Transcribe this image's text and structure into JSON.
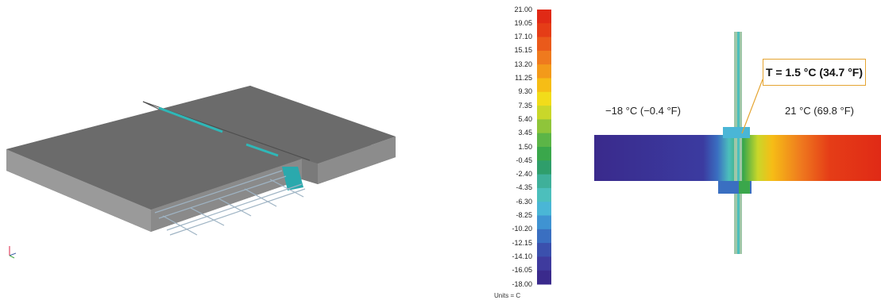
{
  "legend": {
    "ticks": [
      "21.00",
      "19.05",
      "17.10",
      "15.15",
      "13.20",
      "11.25",
      "9.30",
      "7.35",
      "5.40",
      "3.45",
      "1.50",
      "-0.45",
      "-2.40",
      "-4.35",
      "-6.30",
      "-8.25",
      "-10.20",
      "-12.15",
      "-14.10",
      "-16.05",
      "-18.00"
    ],
    "colors": [
      "#e02a16",
      "#e53d17",
      "#ea5a1b",
      "#ef7a1e",
      "#f39a1a",
      "#f6bd16",
      "#f2dc1a",
      "#c9d72a",
      "#8fc53a",
      "#5cb547",
      "#3aa74b",
      "#2f9e6b",
      "#3fb09a",
      "#4cbfbc",
      "#4ab6d6",
      "#3f93d2",
      "#3a6fc1",
      "#3b50ad",
      "#3f3b9e",
      "#3a2a8c"
    ],
    "units": "Units = C"
  },
  "thermal": {
    "cold_label": "−18 °C (−0.4 °F)",
    "warm_label": "21 °C (69.8 °F)",
    "callout": "T = 1.5 °C (34.7 °F)"
  }
}
